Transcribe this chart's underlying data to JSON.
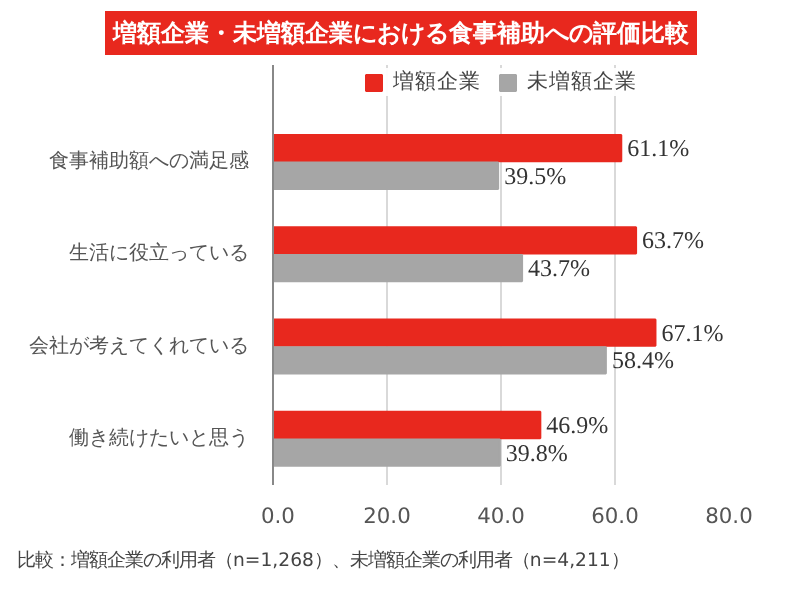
{
  "chart_data": {
    "type": "bar",
    "orientation": "horizontal",
    "title": "増額企業・未増額企業における食事補助への評価比較",
    "categories": [
      "食事補助額への満足感",
      "生活に役立っている",
      "会社が考えてくれている",
      "働き続けたいと思う"
    ],
    "series": [
      {
        "name": "増額企業",
        "color": "#e8281e",
        "values": [
          61.1,
          63.7,
          67.1,
          46.9
        ],
        "value_labels": [
          "61.1%",
          "63.7%",
          "67.1%",
          "46.9%"
        ]
      },
      {
        "name": "未増額企業",
        "color": "#a6a6a6",
        "values": [
          39.5,
          43.7,
          58.4,
          39.8
        ],
        "value_labels": [
          "39.5%",
          "43.7%",
          "58.4%",
          "39.8%"
        ]
      }
    ],
    "xlim": [
      0,
      80
    ],
    "xticks": [
      {
        "value": 0,
        "label": "0.0"
      },
      {
        "value": 20,
        "label": "20.0"
      },
      {
        "value": 40,
        "label": "40.0"
      },
      {
        "value": 60,
        "label": "60.0"
      },
      {
        "value": 80,
        "label": "80.0"
      }
    ],
    "grid": "x",
    "legend": "top",
    "annotations": [
      "比較：増額企業の利用者（n=1,268）、未増額企業の利用者（n=4,211）"
    ]
  }
}
